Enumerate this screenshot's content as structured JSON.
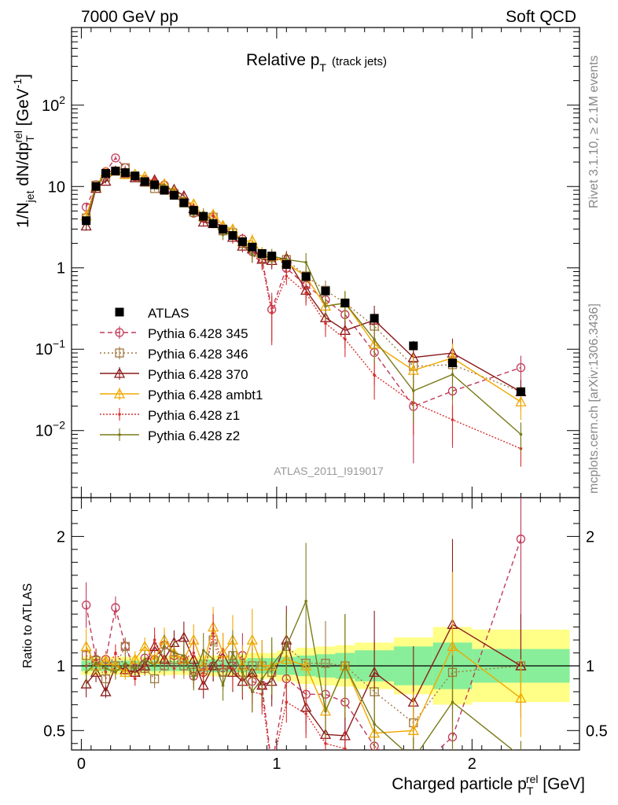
{
  "header": {
    "left": "7000 GeV pp",
    "right": "Soft QCD"
  },
  "side_texts": {
    "rivet": "Rivet 3.1.10, ≥ 2.1M events",
    "mcplots": "mcplots.cern.ch [arXiv:1306.3436]"
  },
  "watermark": "ATLAS_2011_I919017",
  "chart_data": {
    "type": "line",
    "title": "Relative p_T (track jets)",
    "title_parts": {
      "main": "Relative p",
      "sub": "T",
      "suffix": "(track jets)"
    },
    "ylabel": "1/N_jet dN/dp^rel_T [GeV^-1]",
    "ylabel_parts": {
      "a": "1/N",
      "jet": "jet",
      "b": " dN/dp",
      "T": "T",
      "rel": "rel",
      "c": " [GeV",
      "inv": "-1",
      "d": "]"
    },
    "xlabel": "Charged particle p_T^rel [GeV]",
    "xlabel_parts": {
      "a": "Charged particle p",
      "T": "T",
      "rel": "rel",
      "b": " [GeV]"
    },
    "ratio_ylabel": "Ratio to ATLAS",
    "xlim": [
      -0.05,
      2.55
    ],
    "ylim": [
      0.0015,
      900
    ],
    "yscale": "log",
    "ratio_ylim": [
      0.35,
      2.3
    ],
    "x_ticks": [
      "0",
      "1",
      "2"
    ],
    "y_ticks": [
      "10^-2",
      "10^-1",
      "1",
      "10",
      "10^2"
    ],
    "ratio_ticks": [
      "0.5",
      "1",
      "2"
    ],
    "legend_position": "left-middle",
    "x": [
      0.025,
      0.075,
      0.125,
      0.175,
      0.225,
      0.275,
      0.325,
      0.375,
      0.425,
      0.475,
      0.525,
      0.575,
      0.625,
      0.675,
      0.725,
      0.775,
      0.825,
      0.875,
      0.925,
      0.975,
      1.05,
      1.15,
      1.25,
      1.35,
      1.5,
      1.7,
      1.9,
      2.25
    ],
    "data": {
      "name": "ATLAS",
      "values": [
        3.8,
        10.0,
        14.5,
        15.5,
        14.8,
        13.5,
        11.5,
        10.5,
        9.0,
        7.8,
        6.3,
        5.1,
        4.3,
        3.5,
        3.0,
        2.5,
        2.1,
        1.8,
        1.5,
        1.4,
        1.1,
        0.78,
        0.52,
        0.37,
        0.24,
        0.11,
        0.068,
        0.03
      ],
      "ratio_band_stat": [
        0.04,
        0.04,
        0.04,
        0.04,
        0.04,
        0.04,
        0.04,
        0.04,
        0.04,
        0.04,
        0.04,
        0.04,
        0.05,
        0.05,
        0.05,
        0.05,
        0.05,
        0.06,
        0.06,
        0.06,
        0.07,
        0.08,
        0.09,
        0.1,
        0.12,
        0.15,
        0.18,
        0.13
      ],
      "ratio_band_total": [
        0.07,
        0.07,
        0.07,
        0.07,
        0.07,
        0.07,
        0.07,
        0.07,
        0.07,
        0.07,
        0.07,
        0.07,
        0.08,
        0.08,
        0.08,
        0.08,
        0.09,
        0.1,
        0.1,
        0.1,
        0.12,
        0.14,
        0.15,
        0.16,
        0.18,
        0.22,
        0.3,
        0.28
      ]
    },
    "series": [
      {
        "name": "Pythia 6.428 345",
        "color": "#c03a5a",
        "marker": "circle",
        "dash": "6,4",
        "ratio": [
          1.47,
          1.05,
          1.05,
          1.45,
          1.15,
          0.98,
          1.06,
          1.05,
          1.16,
          1.08,
          1.05,
          0.92,
          0.95,
          1.0,
          0.95,
          1.0,
          1.08,
          0.88,
          0.85,
          0.22,
          0.9,
          0.78,
          0.78,
          0.72,
          0.38,
          0.18,
          0.45,
          1.98
        ],
        "rel_err": [
          0.12,
          0.08,
          0.06,
          0.06,
          0.06,
          0.06,
          0.06,
          0.08,
          0.08,
          0.08,
          0.1,
          0.1,
          0.12,
          0.12,
          0.14,
          0.16,
          0.16,
          0.2,
          0.2,
          0.6,
          0.22,
          0.3,
          0.32,
          0.5,
          0.6,
          0.8,
          0.8,
          0.4
        ]
      },
      {
        "name": "Pythia 6.428 346",
        "color": "#a07840",
        "marker": "square",
        "dash": "2,3",
        "ratio": [
          1.08,
          1.04,
          0.9,
          1.0,
          1.15,
          0.95,
          0.98,
          0.9,
          1.0,
          1.05,
          1.0,
          0.95,
          0.97,
          1.2,
          0.95,
          1.08,
          0.95,
          1.0,
          1.0,
          0.95,
          1.15,
          1.02,
          1.02,
          1.0,
          0.8,
          0.56,
          0.95,
          1.0
        ],
        "rel_err": [
          0.1,
          0.08,
          0.06,
          0.06,
          0.06,
          0.06,
          0.06,
          0.08,
          0.08,
          0.08,
          0.1,
          0.1,
          0.12,
          0.12,
          0.14,
          0.16,
          0.16,
          0.2,
          0.2,
          0.22,
          0.22,
          0.3,
          0.32,
          0.4,
          0.5,
          0.7,
          0.8,
          0.4
        ]
      },
      {
        "name": "Pythia 6.428 370",
        "color": "#8b1a1a",
        "marker": "triangle",
        "dash": "",
        "ratio": [
          0.86,
          0.95,
          0.8,
          1.0,
          0.97,
          0.95,
          1.0,
          1.15,
          1.05,
          1.18,
          1.22,
          1.05,
          0.85,
          1.0,
          1.1,
          0.95,
          0.88,
          0.95,
          0.85,
          0.88,
          1.2,
          0.68,
          0.47,
          0.46,
          0.95,
          0.72,
          1.32,
          1.0
        ],
        "rel_err": [
          0.12,
          0.08,
          0.06,
          0.06,
          0.06,
          0.06,
          0.06,
          0.08,
          0.08,
          0.08,
          0.1,
          0.1,
          0.12,
          0.12,
          0.14,
          0.16,
          0.16,
          0.2,
          0.2,
          0.22,
          0.22,
          0.3,
          0.32,
          0.4,
          0.5,
          0.6,
          0.5,
          0.4
        ]
      },
      {
        "name": "Pythia 6.428 ambt1",
        "color": "#f0a800",
        "marker": "triangle",
        "dash": "",
        "ratio": [
          1.15,
          1.0,
          1.04,
          1.0,
          0.95,
          1.05,
          1.15,
          1.05,
          1.2,
          1.1,
          1.05,
          1.2,
          1.0,
          1.3,
          1.1,
          1.2,
          1.0,
          1.2,
          1.0,
          1.0,
          1.05,
          1.0,
          0.65,
          1.0,
          0.48,
          0.5,
          1.15,
          0.75
        ],
        "rel_err": [
          0.12,
          0.08,
          0.06,
          0.06,
          0.06,
          0.06,
          0.06,
          0.08,
          0.08,
          0.08,
          0.1,
          0.1,
          0.12,
          0.12,
          0.14,
          0.16,
          0.16,
          0.2,
          0.2,
          0.22,
          0.22,
          0.3,
          0.32,
          0.4,
          0.5,
          0.6,
          0.5,
          0.4
        ]
      },
      {
        "name": "Pythia 6.428 z1",
        "color": "#d83030",
        "marker": "dot",
        "dash": "2,2",
        "ratio": [
          1.0,
          1.05,
          0.95,
          1.1,
          1.0,
          0.9,
          1.0,
          1.2,
          1.05,
          0.98,
          1.05,
          1.1,
          0.92,
          1.25,
          1.0,
          0.98,
          0.9,
          0.8,
          0.78,
          0.2,
          0.72,
          0.63,
          0.4,
          0.36,
          0.2,
          0.2,
          0.2,
          0.2
        ],
        "rel_err": [
          0.12,
          0.08,
          0.06,
          0.06,
          0.06,
          0.06,
          0.06,
          0.08,
          0.08,
          0.08,
          0.1,
          0.1,
          0.12,
          0.12,
          0.14,
          0.16,
          0.16,
          0.2,
          0.2,
          0.6,
          0.22,
          0.3,
          0.32,
          0.4,
          0.5,
          0.6,
          0.5,
          0.4
        ]
      },
      {
        "name": "Pythia 6.428 z2",
        "color": "#7a7a1a",
        "marker": "dot",
        "dash": "",
        "ratio": [
          0.95,
          1.02,
          0.98,
          0.95,
          1.02,
          0.98,
          1.05,
          1.0,
          1.15,
          1.1,
          1.08,
          0.9,
          1.12,
          1.05,
          0.85,
          1.1,
          0.95,
          0.8,
          0.9,
          1.0,
          1.15,
          1.5,
          0.65,
          1.0,
          0.55,
          0.28,
          0.72,
          0.3
        ],
        "rel_err": [
          0.12,
          0.08,
          0.06,
          0.06,
          0.06,
          0.06,
          0.06,
          0.08,
          0.08,
          0.08,
          0.1,
          0.1,
          0.12,
          0.12,
          0.14,
          0.16,
          0.16,
          0.2,
          0.2,
          0.22,
          0.22,
          0.3,
          0.32,
          0.4,
          0.5,
          0.6,
          0.5,
          0.4
        ]
      }
    ]
  }
}
